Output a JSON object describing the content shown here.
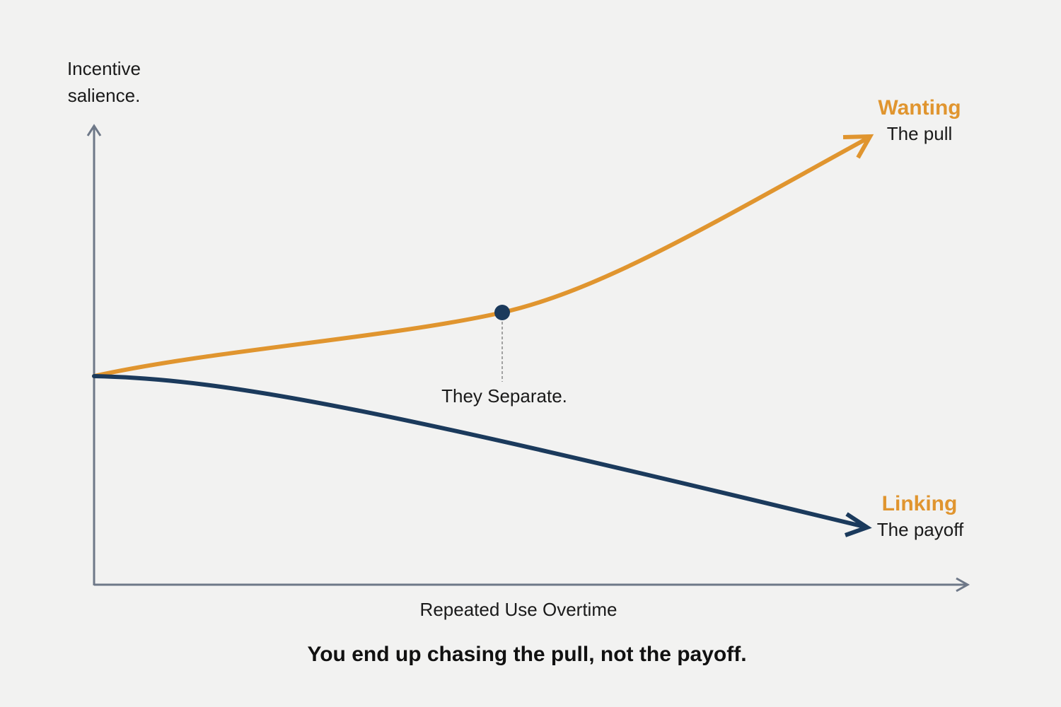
{
  "axes": {
    "y_label": [
      "Incentive",
      "salience."
    ],
    "x_label": "Repeated Use Overtime"
  },
  "curves": [
    {
      "title": "Wanting",
      "subtitle": "The pull"
    },
    {
      "title": "Linking",
      "subtitle": "The payoff"
    }
  ],
  "annotation": "They Separate.",
  "caption": "You end up chasing the pull, not the payoff."
}
